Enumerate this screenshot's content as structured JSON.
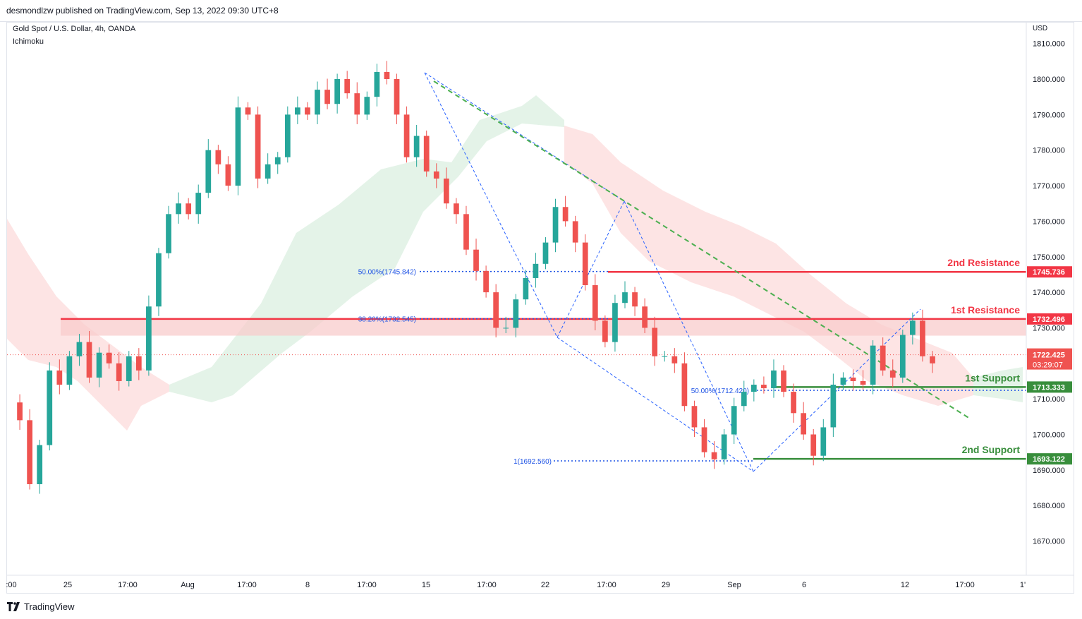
{
  "header": {
    "published_by": "desmondlzw published on TradingView.com, Sep 13, 2022 09:30 UTC+8"
  },
  "legend": {
    "symbol": "Gold Spot / U.S. Dollar, 4h, OANDA",
    "indicator": "Ichimoku"
  },
  "price_scale": {
    "currency": "USD"
  },
  "footer": {
    "brand": "TradingView",
    "logo_icon": "tradingview-logo-icon"
  },
  "colors": {
    "up": "#26a69a",
    "down": "#ef5350",
    "resistance": "#f23645",
    "support": "#388e3c",
    "trendline": "#4caf50",
    "fib": "#2962ff",
    "cloud_bull": "#e4f3e8",
    "cloud_bear": "#fde4e4"
  },
  "chart_data": {
    "type": "candlestick",
    "title": "Gold Spot / U.S. Dollar, 4h, OANDA",
    "ylim": [
      1662,
      1816
    ],
    "y_ticks": [
      "1810.000",
      "1800.000",
      "1790.000",
      "1780.000",
      "1770.000",
      "1760.000",
      "1750.000",
      "1740.000",
      "1730.000",
      "1720.000",
      "1710.000",
      "1700.000",
      "1690.000",
      "1680.000",
      "1670.000"
    ],
    "x_ticks": [
      ":00",
      "25",
      "17:00",
      "Aug",
      "17:00",
      "8",
      "17:00",
      "15",
      "17:00",
      "22",
      "17:00",
      "29",
      "Sep",
      "6",
      "12",
      "17:00",
      "1'"
    ],
    "grid": false,
    "price_path": [
      1709,
      1704,
      1686,
      1697,
      1718,
      1714,
      1722,
      1726,
      1716,
      1723,
      1720,
      1715,
      1722,
      1718,
      1736,
      1751,
      1762,
      1765,
      1762,
      1768,
      1780,
      1776,
      1770,
      1792,
      1790,
      1772,
      1776,
      1778,
      1790,
      1792,
      1790,
      1797,
      1793,
      1800,
      1796,
      1790,
      1795,
      1802,
      1800,
      1790,
      1778,
      1784,
      1774,
      1772,
      1765,
      1762,
      1752,
      1746,
      1740,
      1730,
      1730,
      1738,
      1744,
      1748,
      1754,
      1764,
      1760,
      1754,
      1742,
      1732,
      1726,
      1737,
      1740,
      1736,
      1730,
      1722,
      1722,
      1720,
      1708,
      1702,
      1695,
      1693,
      1700,
      1708,
      1712,
      1714,
      1713,
      1718,
      1712,
      1706,
      1700,
      1694,
      1702,
      1714,
      1716,
      1715,
      1714,
      1725,
      1718,
      1716,
      1728,
      1732,
      1722,
      1720
    ],
    "levels": [
      {
        "name": "2nd Resistance",
        "value": "1745.736",
        "y": 1745.736
      },
      {
        "name": "1st Resistance",
        "value": "1732.496",
        "y": 1732.496
      },
      {
        "name": "1st Support",
        "value": "1713.333",
        "y": 1713.333
      },
      {
        "name": "2nd Support",
        "value": "1693.122",
        "y": 1693.122
      }
    ],
    "current_price": {
      "value": "1722.425",
      "countdown": "03:29:07",
      "y": 1722.425
    },
    "fib_labels": [
      {
        "text": "50.00%(1745.842)",
        "y": 1745.842
      },
      {
        "text": "38.20%(1732.545)",
        "y": 1732.545
      },
      {
        "text": "50.00%(1712.420)",
        "y": 1712.42
      },
      {
        "text": "1(1692.560)",
        "y": 1692.56
      }
    ]
  }
}
